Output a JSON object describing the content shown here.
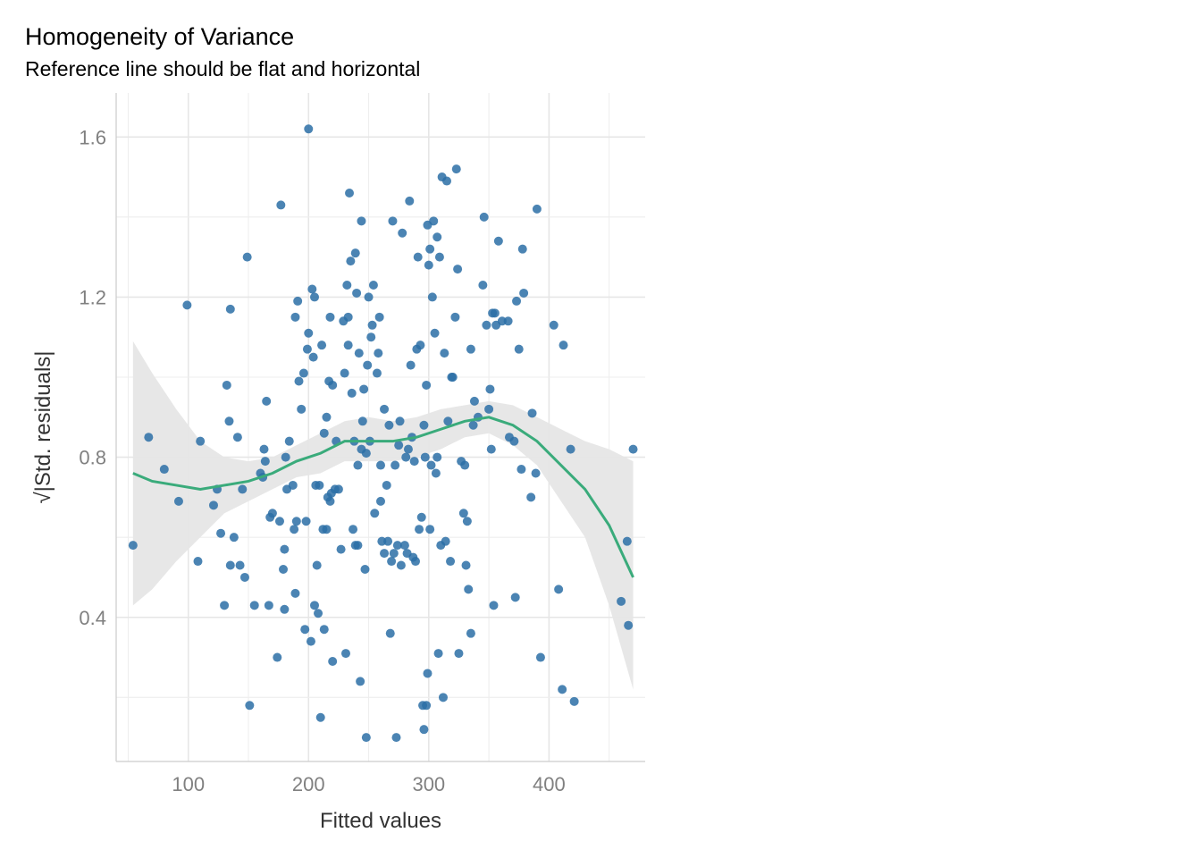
{
  "chart_data": {
    "type": "scatter",
    "title": "Homogeneity of Variance",
    "subtitle": "Reference line should be flat and horizontal",
    "xlabel": "Fitted values",
    "ylabel": "√|Std. residuals|",
    "xlim": [
      40,
      480
    ],
    "ylim": [
      0.04,
      1.71
    ],
    "x_ticks": [
      100,
      200,
      300,
      400
    ],
    "y_ticks": [
      0.4,
      0.8,
      1.2,
      1.6
    ],
    "x_tick_labels": [
      "100",
      "200",
      "300",
      "400"
    ],
    "y_tick_labels": [
      "0.4",
      "0.8",
      "1.2",
      "1.6"
    ],
    "grid": true,
    "colors": {
      "points": "#2c6fa6",
      "smooth": "#3aab7b",
      "ribbon": "#e6e6e6"
    },
    "points": [
      [
        54,
        0.58
      ],
      [
        67,
        0.85
      ],
      [
        80,
        0.77
      ],
      [
        92,
        0.69
      ],
      [
        99,
        1.18
      ],
      [
        108,
        0.54
      ],
      [
        110,
        0.84
      ],
      [
        121,
        0.68
      ],
      [
        124,
        0.72
      ],
      [
        127,
        0.61
      ],
      [
        130,
        0.43
      ],
      [
        132,
        0.98
      ],
      [
        134,
        0.89
      ],
      [
        135,
        0.53
      ],
      [
        135,
        1.17
      ],
      [
        138,
        0.6
      ],
      [
        141,
        0.85
      ],
      [
        143,
        0.53
      ],
      [
        145,
        0.72
      ],
      [
        147,
        0.5
      ],
      [
        149,
        1.3
      ],
      [
        151,
        0.18
      ],
      [
        155,
        0.43
      ],
      [
        160,
        0.76
      ],
      [
        162,
        0.75
      ],
      [
        163,
        0.82
      ],
      [
        164,
        0.79
      ],
      [
        165,
        0.94
      ],
      [
        167,
        0.43
      ],
      [
        168,
        0.65
      ],
      [
        170,
        0.66
      ],
      [
        174,
        0.3
      ],
      [
        176,
        0.64
      ],
      [
        177,
        1.43
      ],
      [
        179,
        0.52
      ],
      [
        180,
        0.57
      ],
      [
        180,
        0.42
      ],
      [
        181,
        0.8
      ],
      [
        182,
        0.72
      ],
      [
        184,
        0.84
      ],
      [
        187,
        0.73
      ],
      [
        188,
        0.62
      ],
      [
        189,
        0.46
      ],
      [
        189,
        1.15
      ],
      [
        190,
        0.64
      ],
      [
        191,
        1.19
      ],
      [
        192,
        0.99
      ],
      [
        194,
        0.92
      ],
      [
        196,
        1.01
      ],
      [
        197,
        0.37
      ],
      [
        198,
        0.64
      ],
      [
        199,
        1.07
      ],
      [
        200,
        1.62
      ],
      [
        200,
        1.11
      ],
      [
        202,
        0.34
      ],
      [
        203,
        1.22
      ],
      [
        204,
        1.05
      ],
      [
        205,
        1.2
      ],
      [
        205,
        0.43
      ],
      [
        206,
        0.73
      ],
      [
        207,
        0.53
      ],
      [
        208,
        0.41
      ],
      [
        209,
        0.73
      ],
      [
        210,
        0.15
      ],
      [
        211,
        1.08
      ],
      [
        212,
        0.62
      ],
      [
        213,
        0.86
      ],
      [
        213,
        0.37
      ],
      [
        215,
        0.62
      ],
      [
        215,
        0.9
      ],
      [
        216,
        0.7
      ],
      [
        217,
        0.99
      ],
      [
        218,
        1.15
      ],
      [
        218,
        0.69
      ],
      [
        219,
        0.71
      ],
      [
        220,
        0.29
      ],
      [
        220,
        0.98
      ],
      [
        222,
        0.72
      ],
      [
        223,
        0.84
      ],
      [
        225,
        0.72
      ],
      [
        227,
        0.57
      ],
      [
        229,
        1.14
      ],
      [
        230,
        1.01
      ],
      [
        231,
        0.31
      ],
      [
        232,
        1.23
      ],
      [
        233,
        1.15
      ],
      [
        233,
        1.08
      ],
      [
        234,
        1.46
      ],
      [
        235,
        1.29
      ],
      [
        236,
        0.96
      ],
      [
        237,
        0.62
      ],
      [
        238,
        0.84
      ],
      [
        239,
        0.58
      ],
      [
        239,
        1.31
      ],
      [
        240,
        1.21
      ],
      [
        241,
        0.78
      ],
      [
        241,
        0.58
      ],
      [
        242,
        1.06
      ],
      [
        243,
        0.24
      ],
      [
        244,
        1.39
      ],
      [
        244,
        0.82
      ],
      [
        245,
        0.89
      ],
      [
        246,
        0.97
      ],
      [
        247,
        0.52
      ],
      [
        248,
        0.1
      ],
      [
        248,
        0.81
      ],
      [
        249,
        1.03
      ],
      [
        250,
        1.2
      ],
      [
        251,
        0.84
      ],
      [
        252,
        1.1
      ],
      [
        253,
        1.13
      ],
      [
        254,
        1.23
      ],
      [
        255,
        0.66
      ],
      [
        257,
        1.01
      ],
      [
        258,
        1.06
      ],
      [
        259,
        1.15
      ],
      [
        260,
        0.78
      ],
      [
        260,
        0.69
      ],
      [
        261,
        0.59
      ],
      [
        263,
        0.92
      ],
      [
        263,
        0.56
      ],
      [
        265,
        0.73
      ],
      [
        266,
        0.59
      ],
      [
        267,
        0.88
      ],
      [
        268,
        0.36
      ],
      [
        269,
        0.54
      ],
      [
        270,
        1.39
      ],
      [
        271,
        0.56
      ],
      [
        272,
        0.78
      ],
      [
        273,
        0.1
      ],
      [
        274,
        0.58
      ],
      [
        275,
        0.83
      ],
      [
        276,
        0.89
      ],
      [
        277,
        0.53
      ],
      [
        278,
        1.36
      ],
      [
        280,
        0.58
      ],
      [
        281,
        0.8
      ],
      [
        282,
        0.56
      ],
      [
        283,
        0.82
      ],
      [
        284,
        1.44
      ],
      [
        285,
        1.03
      ],
      [
        286,
        0.85
      ],
      [
        287,
        0.55
      ],
      [
        288,
        0.79
      ],
      [
        289,
        0.54
      ],
      [
        290,
        1.07
      ],
      [
        291,
        1.3
      ],
      [
        292,
        0.62
      ],
      [
        293,
        1.08
      ],
      [
        294,
        0.65
      ],
      [
        295,
        0.18
      ],
      [
        296,
        0.12
      ],
      [
        296,
        0.88
      ],
      [
        297,
        0.8
      ],
      [
        298,
        0.18
      ],
      [
        298,
        0.98
      ],
      [
        299,
        0.26
      ],
      [
        299,
        1.38
      ],
      [
        300,
        1.28
      ],
      [
        301,
        0.62
      ],
      [
        301,
        1.32
      ],
      [
        302,
        0.78
      ],
      [
        303,
        1.2
      ],
      [
        304,
        1.39
      ],
      [
        305,
        1.11
      ],
      [
        306,
        0.76
      ],
      [
        307,
        0.8
      ],
      [
        307,
        1.35
      ],
      [
        308,
        0.31
      ],
      [
        309,
        1.3
      ],
      [
        310,
        0.58
      ],
      [
        311,
        1.5
      ],
      [
        312,
        0.2
      ],
      [
        313,
        1.06
      ],
      [
        314,
        0.59
      ],
      [
        315,
        1.49
      ],
      [
        316,
        0.89
      ],
      [
        318,
        0.54
      ],
      [
        319,
        1.0
      ],
      [
        320,
        1.0
      ],
      [
        322,
        1.15
      ],
      [
        323,
        1.52
      ],
      [
        324,
        1.27
      ],
      [
        325,
        0.31
      ],
      [
        327,
        0.79
      ],
      [
        329,
        0.66
      ],
      [
        330,
        0.78
      ],
      [
        331,
        0.53
      ],
      [
        332,
        0.64
      ],
      [
        333,
        0.47
      ],
      [
        335,
        0.36
      ],
      [
        335,
        1.07
      ],
      [
        337,
        0.88
      ],
      [
        338,
        0.94
      ],
      [
        341,
        0.9
      ],
      [
        345,
        1.23
      ],
      [
        346,
        1.4
      ],
      [
        348,
        1.13
      ],
      [
        350,
        0.92
      ],
      [
        351,
        0.97
      ],
      [
        352,
        0.82
      ],
      [
        353,
        1.16
      ],
      [
        354,
        0.43
      ],
      [
        355,
        1.16
      ],
      [
        356,
        1.13
      ],
      [
        358,
        1.34
      ],
      [
        361,
        1.14
      ],
      [
        366,
        1.14
      ],
      [
        367,
        0.85
      ],
      [
        371,
        0.84
      ],
      [
        372,
        0.45
      ],
      [
        373,
        1.19
      ],
      [
        375,
        1.07
      ],
      [
        377,
        0.77
      ],
      [
        378,
        1.32
      ],
      [
        379,
        1.21
      ],
      [
        385,
        0.7
      ],
      [
        386,
        0.91
      ],
      [
        389,
        0.76
      ],
      [
        390,
        1.42
      ],
      [
        393,
        0.3
      ],
      [
        404,
        1.13
      ],
      [
        408,
        0.47
      ],
      [
        411,
        0.22
      ],
      [
        412,
        1.08
      ],
      [
        418,
        0.82
      ],
      [
        421,
        0.19
      ],
      [
        460,
        0.44
      ],
      [
        465,
        0.59
      ],
      [
        466,
        0.38
      ],
      [
        470,
        0.82
      ]
    ],
    "smooth_line": [
      [
        54,
        0.76
      ],
      [
        70,
        0.74
      ],
      [
        90,
        0.73
      ],
      [
        110,
        0.72
      ],
      [
        130,
        0.73
      ],
      [
        150,
        0.74
      ],
      [
        170,
        0.76
      ],
      [
        190,
        0.79
      ],
      [
        210,
        0.81
      ],
      [
        230,
        0.84
      ],
      [
        250,
        0.84
      ],
      [
        270,
        0.84
      ],
      [
        290,
        0.85
      ],
      [
        310,
        0.87
      ],
      [
        330,
        0.89
      ],
      [
        350,
        0.9
      ],
      [
        370,
        0.88
      ],
      [
        390,
        0.84
      ],
      [
        410,
        0.78
      ],
      [
        430,
        0.72
      ],
      [
        450,
        0.63
      ],
      [
        470,
        0.5
      ]
    ],
    "ribbon_upper": [
      [
        54,
        1.09
      ],
      [
        70,
        1.01
      ],
      [
        90,
        0.92
      ],
      [
        110,
        0.84
      ],
      [
        130,
        0.8
      ],
      [
        150,
        0.79
      ],
      [
        170,
        0.8
      ],
      [
        190,
        0.83
      ],
      [
        210,
        0.86
      ],
      [
        230,
        0.89
      ],
      [
        250,
        0.9
      ],
      [
        270,
        0.89
      ],
      [
        290,
        0.9
      ],
      [
        310,
        0.92
      ],
      [
        330,
        0.93
      ],
      [
        350,
        0.94
      ],
      [
        370,
        0.93
      ],
      [
        390,
        0.9
      ],
      [
        410,
        0.87
      ],
      [
        430,
        0.84
      ],
      [
        450,
        0.82
      ],
      [
        470,
        0.79
      ]
    ],
    "ribbon_lower": [
      [
        54,
        0.43
      ],
      [
        70,
        0.47
      ],
      [
        90,
        0.54
      ],
      [
        110,
        0.6
      ],
      [
        130,
        0.66
      ],
      [
        150,
        0.69
      ],
      [
        170,
        0.72
      ],
      [
        190,
        0.75
      ],
      [
        210,
        0.76
      ],
      [
        230,
        0.79
      ],
      [
        250,
        0.79
      ],
      [
        270,
        0.79
      ],
      [
        290,
        0.8
      ],
      [
        310,
        0.82
      ],
      [
        330,
        0.85
      ],
      [
        350,
        0.86
      ],
      [
        370,
        0.83
      ],
      [
        390,
        0.78
      ],
      [
        410,
        0.69
      ],
      [
        430,
        0.6
      ],
      [
        450,
        0.43
      ],
      [
        470,
        0.22
      ]
    ]
  }
}
